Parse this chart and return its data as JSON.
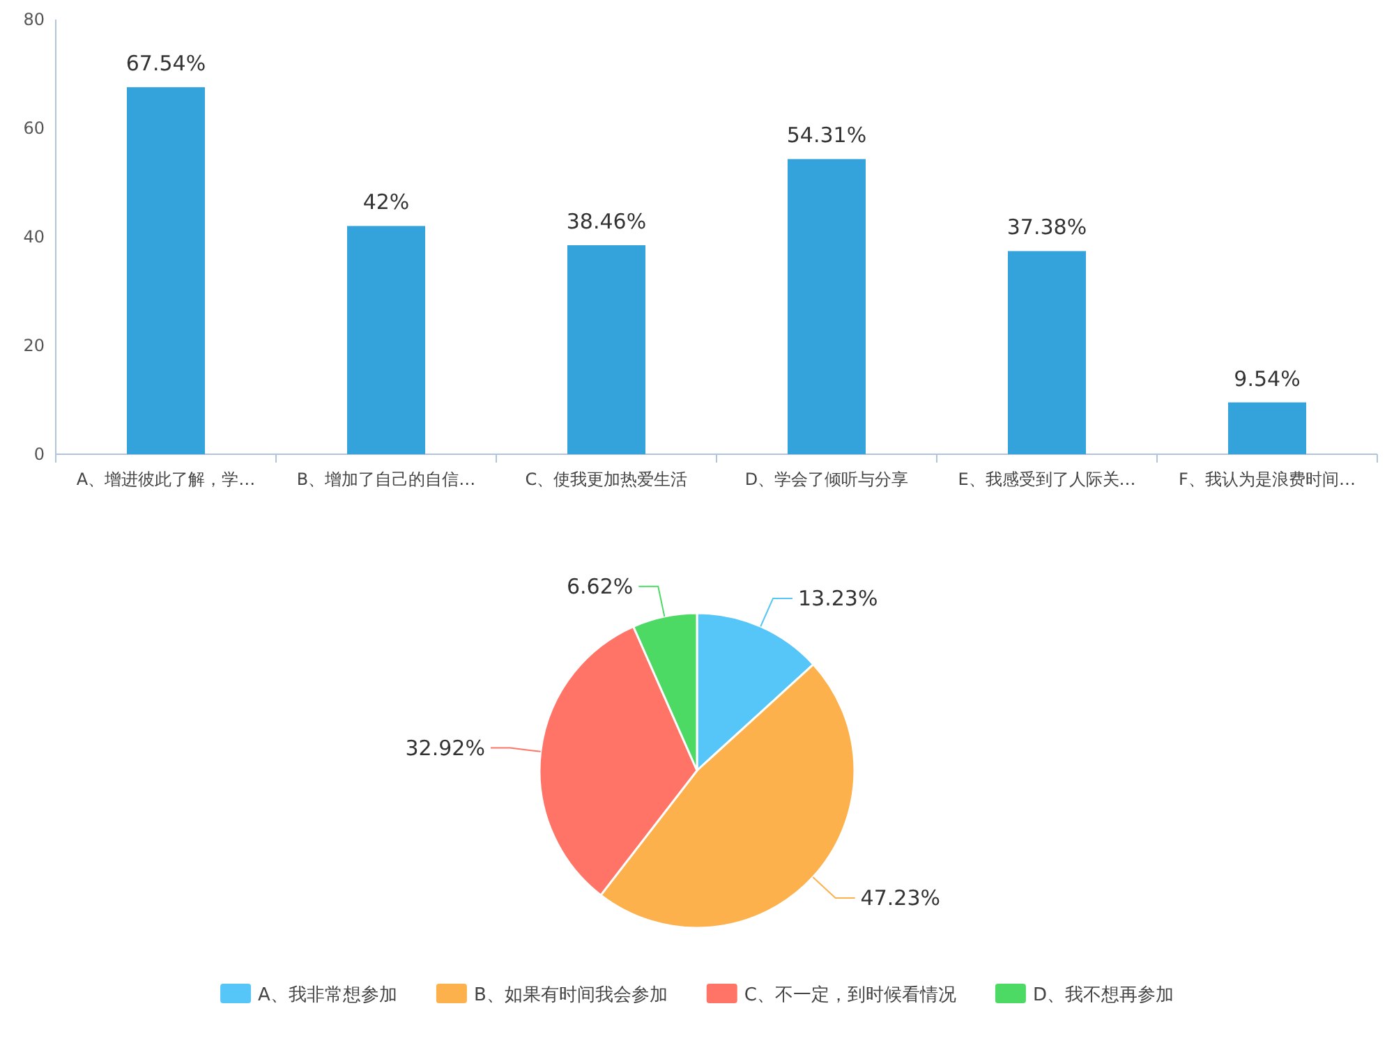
{
  "chart_data": [
    {
      "type": "bar",
      "categories": [
        "A、增进彼此了解，学…",
        "B、增加了自己的自信…",
        "C、使我更加热爱生活",
        "D、学会了倾听与分享",
        "E、我感受到了人际关…",
        "F、我认为是浪费时间…"
      ],
      "values": [
        67.54,
        42,
        38.46,
        54.31,
        37.38,
        9.54
      ],
      "color": "#34a2db",
      "value_labels": [
        "67.54%",
        "42%",
        "38.46%",
        "54.31%",
        "37.38%",
        "9.54%"
      ],
      "ylim": [
        0,
        80
      ],
      "yticks": [
        0,
        20,
        40,
        60,
        80
      ],
      "grid": false
    },
    {
      "type": "pie",
      "categories": [
        "A、我非常想参加",
        "B、如果有时间我会参加",
        "C、不一定，到时候看情况",
        "D、我不想再参加"
      ],
      "values": [
        13.23,
        47.23,
        32.92,
        6.62
      ],
      "colors": [
        "#56c5f8",
        "#fdb14c",
        "#ff7466",
        "#4cd964"
      ],
      "value_labels": [
        "13.23%",
        "47.23%",
        "32.92%",
        "6.62%"
      ],
      "legend": "bottom"
    }
  ]
}
